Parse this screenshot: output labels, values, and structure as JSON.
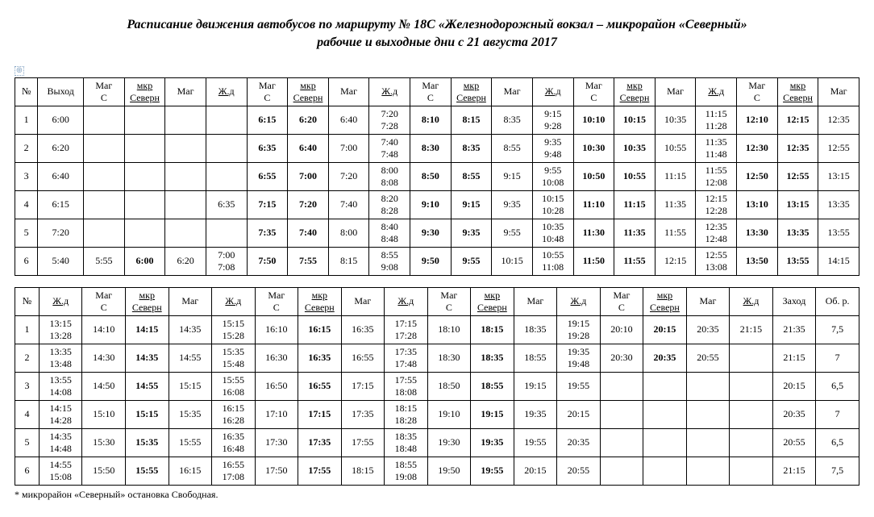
{
  "title_line1": "Расписание движения автобусов по маршруту № 18С «Железнодорожный вокзал – микрорайон «Северный»",
  "title_line2": "рабочие и выходные дни с 21 августа 2017",
  "anchor_symbol": "⊕",
  "footnote": "* микрорайон «Северный» остановка Свободная.",
  "headers1": [
    "№",
    "Выход",
    "Маг С",
    "мкр Северн",
    "Маг",
    "Ж.д",
    "Маг С",
    "мкр Северн",
    "Маг",
    "Ж.д",
    "Маг С",
    "мкр Северн",
    "Маг",
    "Ж.д",
    "Маг С",
    "мкр Северн",
    "Маг",
    "Ж.д",
    "Маг С",
    "мкр Северн",
    "Маг"
  ],
  "headers2": [
    "№",
    "Ж.д",
    "Маг С",
    "мкр Северн",
    "Маг",
    "Ж.д",
    "Маг С",
    "мкр Северн",
    "Маг",
    "Ж.д",
    "Маг С",
    "мкр Северн",
    "Маг",
    "Ж.д",
    "Маг С",
    "мкр Северн",
    "Маг",
    "Ж.д",
    "Заход",
    "Об. р."
  ],
  "table1": [
    {
      "n": "1",
      "c": [
        "6:00",
        "",
        "",
        "",
        "",
        "6:15",
        "6:20",
        "6:40",
        "7:20\n7:28",
        "8:10",
        "8:15",
        "8:35",
        "9:15\n9:28",
        "10:10",
        "10:15",
        "10:35",
        "11:15\n11:28",
        "12:10",
        "12:15",
        "12:35"
      ],
      "b": [
        6,
        7,
        10,
        11,
        14,
        15,
        18,
        19
      ]
    },
    {
      "n": "2",
      "c": [
        "6:20",
        "",
        "",
        "",
        "",
        "6:35",
        "6:40",
        "7:00",
        "7:40\n7:48",
        "8:30",
        "8:35",
        "8:55",
        "9:35\n9:48",
        "10:30",
        "10:35",
        "10:55",
        "11:35\n11:48",
        "12:30",
        "12:35",
        "12:55"
      ],
      "b": [
        6,
        7,
        10,
        11,
        14,
        15,
        18,
        19
      ]
    },
    {
      "n": "3",
      "c": [
        "6:40",
        "",
        "",
        "",
        "",
        "6:55",
        "7:00",
        "7:20",
        "8:00\n8:08",
        "8:50",
        "8:55",
        "9:15",
        "9:55\n10:08",
        "10:50",
        "10:55",
        "11:15",
        "11:55\n12:08",
        "12:50",
        "12:55",
        "13:15"
      ],
      "b": [
        6,
        7,
        10,
        11,
        14,
        15,
        18,
        19
      ]
    },
    {
      "n": "4",
      "c": [
        "6:15",
        "",
        "",
        "",
        "6:35",
        "7:15",
        "7:20",
        "7:40",
        "8:20\n8:28",
        "9:10",
        "9:15",
        "9:35",
        "10:15\n10:28",
        "11:10",
        "11:15",
        "11:35",
        "12:15\n12:28",
        "13:10",
        "13:15",
        "13:35"
      ],
      "b": [
        6,
        7,
        10,
        11,
        14,
        15,
        18,
        19
      ]
    },
    {
      "n": "5",
      "c": [
        "7:20",
        "",
        "",
        "",
        "",
        "7:35",
        "7:40",
        "8:00",
        "8:40\n8:48",
        "9:30",
        "9:35",
        "9:55",
        "10:35\n10:48",
        "11:30",
        "11:35",
        "11:55",
        "12:35\n12:48",
        "13:30",
        "13:35",
        "13:55"
      ],
      "b": [
        6,
        7,
        10,
        11,
        14,
        15,
        18,
        19
      ]
    },
    {
      "n": "6",
      "c": [
        "5:40",
        "5:55",
        "6:00",
        "6:20",
        "7:00\n7:08",
        "7:50",
        "7:55",
        "8:15",
        "8:55\n9:08",
        "9:50",
        "9:55",
        "10:15",
        "10:55\n11:08",
        "11:50",
        "11:55",
        "12:15",
        "12:55\n13:08",
        "13:50",
        "13:55",
        "14:15"
      ],
      "b": [
        3,
        6,
        7,
        10,
        11,
        14,
        15,
        18,
        19
      ]
    }
  ],
  "table2": [
    {
      "n": "1",
      "c": [
        "13:15\n13:28",
        "14:10",
        "14:15",
        "14:35",
        "15:15\n15:28",
        "16:10",
        "16:15",
        "16:35",
        "17:15\n17:28",
        "18:10",
        "18:15",
        "18:35",
        "19:15\n19:28",
        "20:10",
        "20:15",
        "20:35",
        "21:15",
        "21:35",
        "7,5"
      ],
      "b": [
        3,
        7,
        11,
        15
      ]
    },
    {
      "n": "2",
      "c": [
        "13:35\n13:48",
        "14:30",
        "14:35",
        "14:55",
        "15:35\n15:48",
        "16:30",
        "16:35",
        "16:55",
        "17:35\n17:48",
        "18:30",
        "18:35",
        "18:55",
        "19:35\n19:48",
        "20:30",
        "20:35",
        "20:55",
        "",
        "21:15",
        "7"
      ],
      "b": [
        3,
        7,
        11,
        15
      ]
    },
    {
      "n": "3",
      "c": [
        "13:55\n14:08",
        "14:50",
        "14:55",
        "15:15",
        "15:55\n16:08",
        "16:50",
        "16:55",
        "17:15",
        "17:55\n18:08",
        "18:50",
        "18:55",
        "19:15",
        "19:55",
        "",
        "",
        "",
        "",
        "20:15",
        "6,5"
      ],
      "b": [
        3,
        7,
        11
      ]
    },
    {
      "n": "4",
      "c": [
        "14:15\n14:28",
        "15:10",
        "15:15",
        "15:35",
        "16:15\n16:28",
        "17:10",
        "17:15",
        "17:35",
        "18:15\n18:28",
        "19:10",
        "19:15",
        "19:35",
        "20:15",
        "",
        "",
        "",
        "",
        "20:35",
        "7"
      ],
      "b": [
        3,
        7,
        11
      ]
    },
    {
      "n": "5",
      "c": [
        "14:35\n14:48",
        "15:30",
        "15:35",
        "15:55",
        "16:35\n16:48",
        "17:30",
        "17:35",
        "17:55",
        "18:35\n18:48",
        "19:30",
        "19:35",
        "19:55",
        "20:35",
        "",
        "",
        "",
        "",
        "20:55",
        "6,5"
      ],
      "b": [
        3,
        7,
        11
      ]
    },
    {
      "n": "6",
      "c": [
        "14:55\n15:08",
        "15:50",
        "15:55",
        "16:15",
        "16:55\n17:08",
        "17:50",
        "17:55",
        "18:15",
        "18:55\n19:08",
        "19:50",
        "19:55",
        "20:15",
        "20:55",
        "",
        "",
        "",
        "",
        "21:15",
        "7,5"
      ],
      "b": [
        3,
        7,
        11
      ]
    }
  ],
  "severnn_cols1": [
    3,
    7,
    11,
    15,
    19
  ],
  "severnn_cols2": [
    3,
    7,
    11,
    15
  ]
}
